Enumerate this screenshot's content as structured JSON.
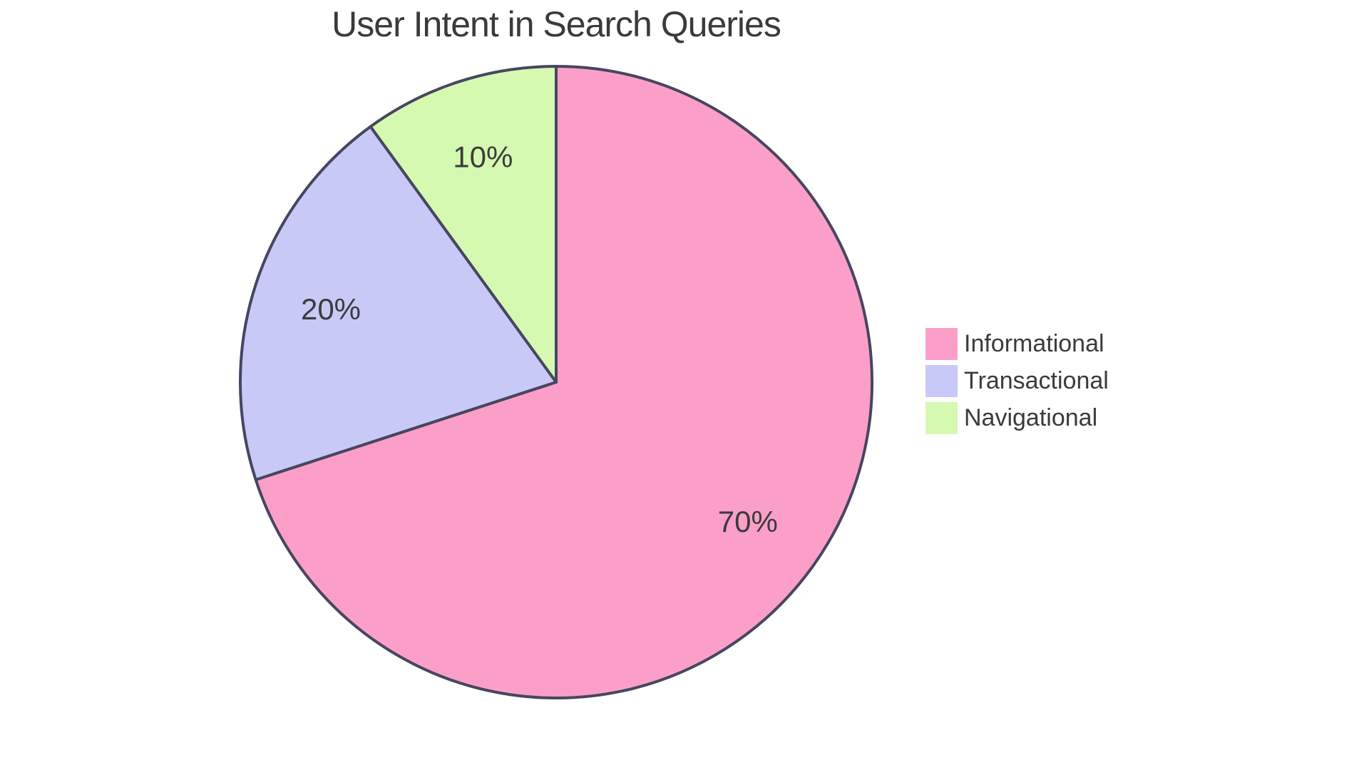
{
  "chart_data": {
    "type": "pie",
    "title": "User Intent in Search Queries",
    "categories": [
      "Informational",
      "Transactional",
      "Navigational"
    ],
    "values": [
      70,
      20,
      10
    ],
    "slice_labels": [
      "70%",
      "20%",
      "10%"
    ],
    "colors": [
      "#FB9FC9",
      "#C9C9F8",
      "#D5F9B0"
    ],
    "stroke_color": "#464660",
    "stroke_width": 4,
    "label_color": "#3b3b3b",
    "title_color": "#3a3a3a",
    "start_angle": "12 o'clock",
    "direction": "clockwise",
    "label_distance": 0.75,
    "legend_position": "right-middle",
    "background": "#ffffff"
  }
}
